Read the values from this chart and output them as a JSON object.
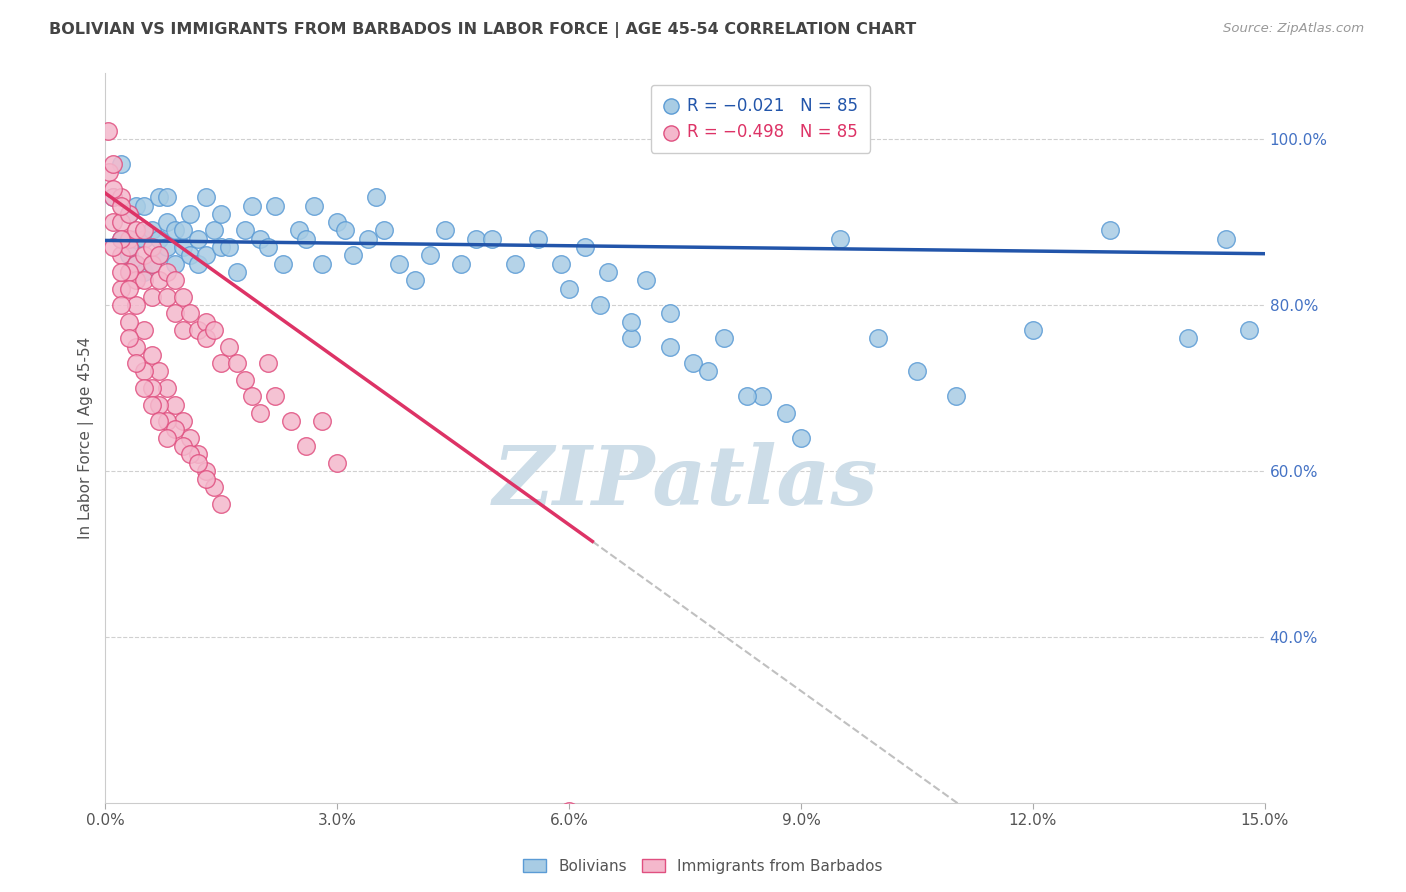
{
  "title": "BOLIVIAN VS IMMIGRANTS FROM BARBADOS IN LABOR FORCE | AGE 45-54 CORRELATION CHART",
  "source": "Source: ZipAtlas.com",
  "ylabel": "In Labor Force | Age 45-54",
  "xlim": [
    0.0,
    0.15
  ],
  "ylim": [
    0.2,
    1.08
  ],
  "xticks": [
    0.0,
    0.03,
    0.06,
    0.09,
    0.12,
    0.15
  ],
  "xticklabels": [
    "0.0%",
    "3.0%",
    "6.0%",
    "9.0%",
    "12.0%",
    "15.0%"
  ],
  "yticks_right": [
    0.4,
    0.6,
    0.8,
    1.0
  ],
  "ytick_right_labels": [
    "40.0%",
    "60.0%",
    "80.0%",
    "100.0%"
  ],
  "watermark": "ZIPatlas",
  "blue_color": "#a8cce4",
  "pink_color": "#f4b8cc",
  "blue_edge_color": "#5b9bd5",
  "pink_edge_color": "#e05080",
  "blue_line_color": "#2255aa",
  "pink_line_color": "#dd3366",
  "blue_scatter": {
    "x": [
      0.001,
      0.002,
      0.002,
      0.003,
      0.003,
      0.004,
      0.004,
      0.004,
      0.005,
      0.005,
      0.005,
      0.006,
      0.006,
      0.007,
      0.007,
      0.007,
      0.008,
      0.008,
      0.008,
      0.009,
      0.009,
      0.01,
      0.01,
      0.011,
      0.011,
      0.012,
      0.012,
      0.013,
      0.013,
      0.014,
      0.015,
      0.015,
      0.016,
      0.017,
      0.018,
      0.019,
      0.02,
      0.021,
      0.022,
      0.023,
      0.025,
      0.026,
      0.027,
      0.028,
      0.03,
      0.031,
      0.032,
      0.034,
      0.035,
      0.036,
      0.038,
      0.04,
      0.042,
      0.044,
      0.046,
      0.048,
      0.05,
      0.053,
      0.056,
      0.059,
      0.062,
      0.065,
      0.068,
      0.07,
      0.073,
      0.076,
      0.08,
      0.085,
      0.09,
      0.095,
      0.1,
      0.105,
      0.11,
      0.12,
      0.13,
      0.14,
      0.145,
      0.148,
      0.06,
      0.064,
      0.068,
      0.073,
      0.078,
      0.083,
      0.088
    ],
    "y": [
      0.93,
      0.97,
      0.88,
      0.91,
      0.86,
      0.92,
      0.88,
      0.85,
      0.92,
      0.88,
      0.84,
      0.89,
      0.85,
      0.88,
      0.93,
      0.86,
      0.9,
      0.87,
      0.93,
      0.89,
      0.85,
      0.87,
      0.89,
      0.91,
      0.86,
      0.88,
      0.85,
      0.93,
      0.86,
      0.89,
      0.91,
      0.87,
      0.87,
      0.84,
      0.89,
      0.92,
      0.88,
      0.87,
      0.92,
      0.85,
      0.89,
      0.88,
      0.92,
      0.85,
      0.9,
      0.89,
      0.86,
      0.88,
      0.93,
      0.89,
      0.85,
      0.83,
      0.86,
      0.89,
      0.85,
      0.88,
      0.88,
      0.85,
      0.88,
      0.85,
      0.87,
      0.84,
      0.76,
      0.83,
      0.79,
      0.73,
      0.76,
      0.69,
      0.64,
      0.88,
      0.76,
      0.72,
      0.69,
      0.77,
      0.89,
      0.76,
      0.88,
      0.77,
      0.82,
      0.8,
      0.78,
      0.75,
      0.72,
      0.69,
      0.67
    ]
  },
  "pink_scatter": {
    "x": [
      0.0003,
      0.0005,
      0.001,
      0.001,
      0.001,
      0.002,
      0.002,
      0.002,
      0.003,
      0.003,
      0.003,
      0.003,
      0.004,
      0.004,
      0.004,
      0.005,
      0.005,
      0.005,
      0.006,
      0.006,
      0.006,
      0.007,
      0.007,
      0.008,
      0.008,
      0.009,
      0.009,
      0.01,
      0.01,
      0.011,
      0.012,
      0.013,
      0.013,
      0.014,
      0.015,
      0.016,
      0.017,
      0.018,
      0.019,
      0.02,
      0.021,
      0.022,
      0.024,
      0.026,
      0.028,
      0.03,
      0.002,
      0.003,
      0.004,
      0.005,
      0.006,
      0.007,
      0.008,
      0.009,
      0.01,
      0.011,
      0.012,
      0.013,
      0.014,
      0.015,
      0.002,
      0.003,
      0.004,
      0.005,
      0.006,
      0.007,
      0.008,
      0.009,
      0.01,
      0.011,
      0.012,
      0.013,
      0.003,
      0.004,
      0.005,
      0.006,
      0.007,
      0.008,
      0.001,
      0.002,
      0.06,
      0.001,
      0.002,
      0.003,
      0.002
    ],
    "y": [
      1.01,
      0.96,
      0.93,
      0.97,
      0.9,
      0.86,
      0.9,
      0.93,
      0.88,
      0.84,
      0.91,
      0.87,
      0.85,
      0.89,
      0.83,
      0.86,
      0.89,
      0.83,
      0.85,
      0.81,
      0.87,
      0.83,
      0.86,
      0.84,
      0.81,
      0.83,
      0.79,
      0.81,
      0.77,
      0.79,
      0.77,
      0.78,
      0.76,
      0.77,
      0.73,
      0.75,
      0.73,
      0.71,
      0.69,
      0.67,
      0.73,
      0.69,
      0.66,
      0.63,
      0.66,
      0.61,
      0.88,
      0.84,
      0.8,
      0.77,
      0.74,
      0.72,
      0.7,
      0.68,
      0.66,
      0.64,
      0.62,
      0.6,
      0.58,
      0.56,
      0.82,
      0.78,
      0.75,
      0.72,
      0.7,
      0.68,
      0.66,
      0.65,
      0.63,
      0.62,
      0.61,
      0.59,
      0.76,
      0.73,
      0.7,
      0.68,
      0.66,
      0.64,
      0.94,
      0.92,
      0.19,
      0.87,
      0.84,
      0.82,
      0.8
    ]
  },
  "blue_regline": {
    "x": [
      0.0,
      0.15
    ],
    "y": [
      0.878,
      0.862
    ]
  },
  "pink_regline_solid": {
    "x": [
      0.0,
      0.063
    ],
    "y": [
      0.935,
      0.515
    ]
  },
  "pink_regline_dashed": {
    "x": [
      0.063,
      0.152
    ],
    "y": [
      0.515,
      -0.08
    ]
  },
  "background_color": "#ffffff",
  "grid_color": "#d0d0d0",
  "title_color": "#444444",
  "right_axis_color": "#4472c4",
  "watermark_color": "#cddde8",
  "figsize": [
    14.06,
    8.92
  ],
  "dpi": 100
}
